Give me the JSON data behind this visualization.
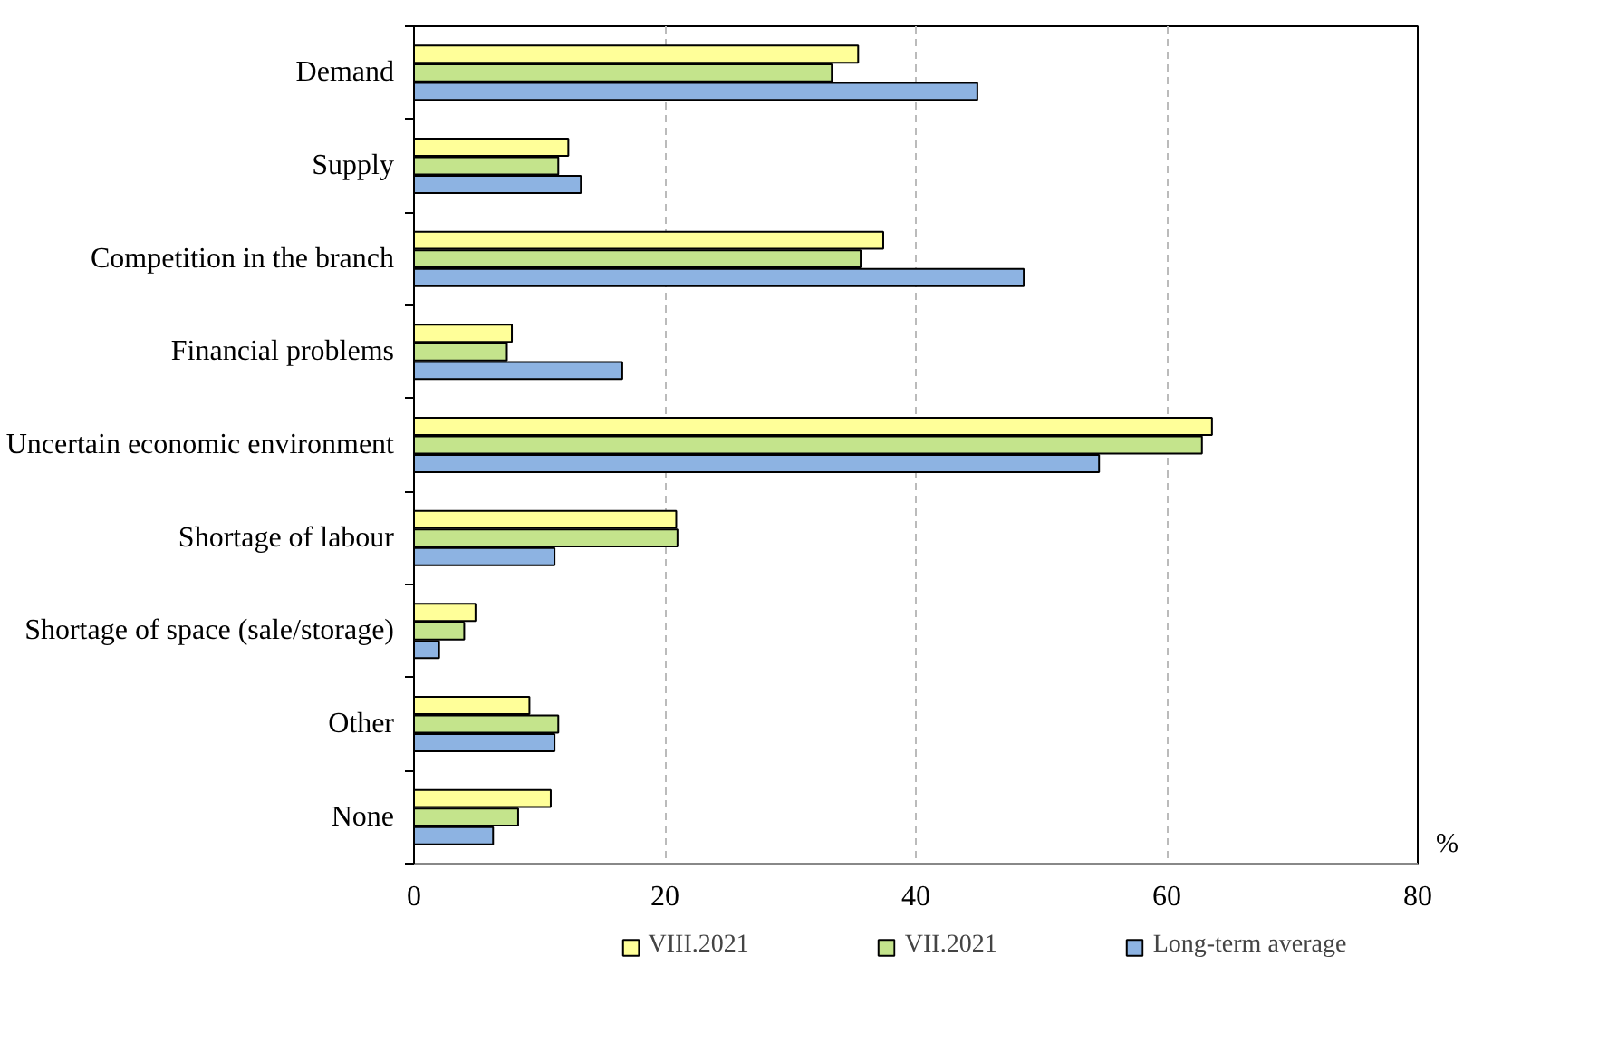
{
  "chart_data": {
    "type": "bar",
    "orientation": "horizontal",
    "xlabel": "%",
    "categories": [
      "Demand",
      "Supply",
      "Competition in the branch",
      "Financial problems",
      "Uncertain economic environment",
      "Shortage of labour",
      "Shortage of space (sale/storage)",
      "Other",
      "None"
    ],
    "series": [
      {
        "name": "VIII.2021",
        "color": "#ffff99",
        "values": [
          35.4,
          12.3,
          37.4,
          7.8,
          63.6,
          20.9,
          4.9,
          9.2,
          10.9
        ]
      },
      {
        "name": "VII.2021",
        "color": "#c4e48c",
        "values": [
          33.3,
          11.5,
          35.6,
          7.4,
          62.8,
          21.0,
          4.0,
          11.5,
          8.3
        ]
      },
      {
        "name": "Long-term average",
        "color": "#8db3e2",
        "values": [
          44.9,
          13.3,
          48.6,
          16.6,
          54.6,
          11.2,
          2.0,
          11.2,
          6.3
        ]
      }
    ],
    "xlim": [
      0,
      80
    ],
    "xticks": [
      0,
      20,
      40,
      60,
      80
    ],
    "grid": "x",
    "legend": "bottom"
  }
}
